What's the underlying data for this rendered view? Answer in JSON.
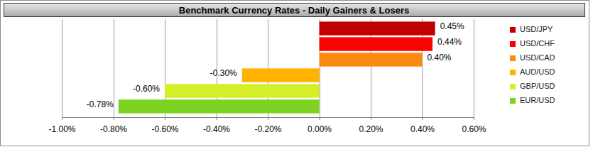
{
  "chart_data": {
    "type": "bar",
    "orientation": "horizontal",
    "title": "Benchmark Currency Rates - Daily Gainers & Losers",
    "categories": [
      "USD/JPY",
      "USD/CHF",
      "USD/CAD",
      "AUD/USD",
      "GBP/USD",
      "EUR/USD"
    ],
    "values": [
      0.45,
      0.44,
      0.4,
      -0.3,
      -0.6,
      -0.78
    ],
    "value_labels": [
      "0.45%",
      "0.44%",
      "0.40%",
      "-0.30%",
      "-0.60%",
      "-0.78%"
    ],
    "colors": [
      "#c00000",
      "#ff0000",
      "#fb8a10",
      "#ffb300",
      "#d4ef2a",
      "#7ed321"
    ],
    "xlim": [
      -1,
      0.6
    ],
    "xticks": [
      {
        "value": -1,
        "label": "-1.00%"
      },
      {
        "value": -0.8,
        "label": "-0.80%"
      },
      {
        "value": -0.6,
        "label": "-0.60%"
      },
      {
        "value": -0.4,
        "label": "-0.40%"
      },
      {
        "value": -0.2,
        "label": "-0.20%"
      },
      {
        "value": 0,
        "label": "0.00%"
      },
      {
        "value": 0.2,
        "label": "0.20%"
      },
      {
        "value": 0.4,
        "label": "0.40%"
      },
      {
        "value": 0.6,
        "label": "0.60%"
      }
    ],
    "grid": true,
    "data_labels": true,
    "legend": "right",
    "tick_labels": "x"
  }
}
